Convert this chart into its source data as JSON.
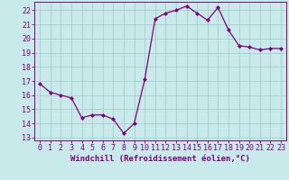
{
  "x": [
    0,
    1,
    2,
    3,
    4,
    5,
    6,
    7,
    8,
    9,
    10,
    11,
    12,
    13,
    14,
    15,
    16,
    17,
    18,
    19,
    20,
    21,
    22,
    23
  ],
  "y": [
    16.8,
    16.2,
    16.0,
    15.8,
    14.4,
    14.6,
    14.6,
    14.3,
    13.3,
    14.0,
    17.1,
    21.4,
    21.8,
    22.0,
    22.3,
    21.8,
    21.3,
    22.2,
    20.6,
    19.5,
    19.4,
    19.2,
    19.3,
    19.3
  ],
  "line_color": "#800080",
  "marker": "D",
  "marker_size": 2.0,
  "bg_color": "#c8eaea",
  "grid_color": "#a8cccc",
  "xlabel": "Windchill (Refroidissement éolien,°C)",
  "ylim": [
    12.8,
    22.6
  ],
  "xlim": [
    -0.5,
    23.5
  ],
  "yticks": [
    13,
    14,
    15,
    16,
    17,
    18,
    19,
    20,
    21,
    22
  ],
  "xticks": [
    0,
    1,
    2,
    3,
    4,
    5,
    6,
    7,
    8,
    9,
    10,
    11,
    12,
    13,
    14,
    15,
    16,
    17,
    18,
    19,
    20,
    21,
    22,
    23
  ],
  "tick_color": "#800080",
  "spine_color": "#800080",
  "xlabel_fontsize": 6.5,
  "tick_fontsize": 6.0,
  "linewidth": 0.9
}
